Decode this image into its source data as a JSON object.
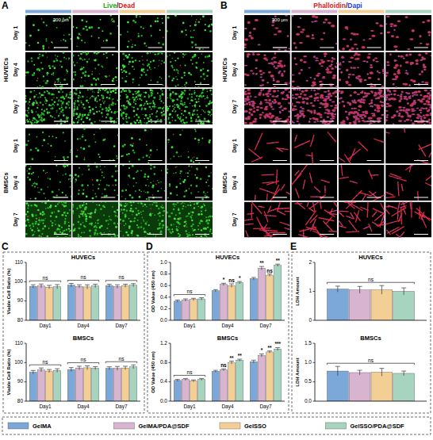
{
  "figure": {
    "panels": [
      {
        "letter": "A",
        "title": [
          "Live",
          "/",
          "Dead"
        ],
        "scale_bar": "300 μm",
        "rows": [
          {
            "group": "HUVECs",
            "days": [
              "Day 1",
              "Day 4",
              "Day 7"
            ]
          },
          {
            "group": "BMSCs",
            "days": [
              "Day 1",
              "Day 4",
              "Day 7"
            ]
          }
        ]
      },
      {
        "letter": "B",
        "title": [
          "Phalloidin",
          "/",
          "Dapi"
        ],
        "scale_bar": "300 μm",
        "rows": [
          {
            "group": "HUVECs",
            "days": [
              "Day 1",
              "Day 4",
              "Day 7"
            ]
          },
          {
            "group": "BMSCs",
            "days": [
              "Day 1",
              "Day 4",
              "Day 7"
            ]
          }
        ]
      },
      {
        "letter": "C"
      },
      {
        "letter": "D"
      },
      {
        "letter": "E"
      }
    ]
  },
  "chart_data": [
    {
      "type": "bar",
      "title": "HUVECs",
      "y_label": "Viable Cell Ratio (%)",
      "categories": [
        "Day1",
        "Day4",
        "Day7"
      ],
      "ylim": [
        80,
        110
      ],
      "yticks": [
        80,
        90,
        100,
        110
      ],
      "legend": "bottom",
      "group_annotations": [
        "ns",
        "ns",
        "ns"
      ],
      "series": [
        {
          "name": "GelMA",
          "color": "#7ba7d9",
          "values": [
            97.6,
            98.2,
            98.0
          ],
          "errors": [
            0.8,
            0.9,
            0.7
          ]
        },
        {
          "name": "GelMA/PDA@SDF",
          "color": "#d8b4d0",
          "values": [
            97.8,
            97.6,
            97.5
          ],
          "errors": [
            1.0,
            0.8,
            0.9
          ]
        },
        {
          "name": "GelSSO",
          "color": "#f3cf96",
          "values": [
            97.2,
            97.3,
            97.9
          ],
          "errors": [
            0.9,
            1.1,
            0.8
          ]
        },
        {
          "name": "GelSSO/PDA@SDF",
          "color": "#a6d4bf",
          "values": [
            97.4,
            97.8,
            98.2
          ],
          "errors": [
            1.1,
            0.9,
            0.8
          ]
        }
      ]
    },
    {
      "type": "bar",
      "title": "BMSCs",
      "y_label": "Viable Cell Ratio (%)",
      "categories": [
        "Day1",
        "Day4",
        "Day7"
      ],
      "ylim": [
        80,
        110
      ],
      "yticks": [
        80,
        90,
        100,
        110
      ],
      "group_annotations": [
        "ns",
        "ns",
        "ns"
      ],
      "series": [
        {
          "color": "#7ba7d9",
          "values": [
            95.0,
            96.4,
            97.0
          ],
          "errors": [
            0.9,
            1.0,
            0.8
          ]
        },
        {
          "color": "#d8b4d0",
          "values": [
            96.2,
            97.2,
            97.0
          ],
          "errors": [
            1.0,
            0.9,
            1.0
          ]
        },
        {
          "color": "#f3cf96",
          "values": [
            95.6,
            97.3,
            97.2
          ],
          "errors": [
            0.8,
            1.0,
            0.9
          ]
        },
        {
          "color": "#a6d4bf",
          "values": [
            95.9,
            97.1,
            97.8
          ],
          "errors": [
            0.9,
            0.8,
            1.0
          ]
        }
      ]
    },
    {
      "type": "bar",
      "title": "HUVECs",
      "y_label": "OD Value (450 nm)",
      "categories": [
        "Day1",
        "Day4",
        "Day7"
      ],
      "ylim": [
        0,
        1
      ],
      "yticks": [
        {
          "value": 0,
          "label": "0.0"
        },
        0.2,
        0.4,
        0.6,
        0.8,
        {
          "value": 1,
          "label": "1.0"
        }
      ],
      "group_annotations": [
        "ns",
        null,
        null
      ],
      "series": [
        {
          "color": "#7ba7d9",
          "values": [
            0.33,
            0.51,
            0.72
          ],
          "errors": [
            0.02,
            0.02,
            0.02
          ]
        },
        {
          "color": "#d8b4d0",
          "values": [
            0.35,
            0.62,
            0.9
          ],
          "errors": [
            0.02,
            0.02,
            0.03
          ],
          "annotations": [
            null,
            "*",
            "**"
          ]
        },
        {
          "color": "#f3cf96",
          "values": [
            0.36,
            0.6,
            0.78
          ],
          "errors": [
            0.02,
            0.03,
            0.02
          ],
          "annotations": [
            null,
            "ns",
            "ns"
          ]
        },
        {
          "color": "#a6d4bf",
          "values": [
            0.37,
            0.65,
            0.95
          ],
          "errors": [
            0.02,
            0.02,
            0.02
          ],
          "annotations": [
            null,
            "*",
            "**"
          ]
        }
      ]
    },
    {
      "type": "bar",
      "title": "BMSCs",
      "y_label": "OD Value (450 nm)",
      "categories": [
        "Day1",
        "Day4",
        "Day7"
      ],
      "ylim": [
        0,
        1.2
      ],
      "yticks": [
        {
          "value": 0,
          "label": "0.0"
        },
        0.4,
        0.8,
        1.2
      ],
      "group_annotations": [
        "ns",
        null,
        null
      ],
      "series": [
        {
          "color": "#7ba7d9",
          "values": [
            0.43,
            0.62,
            0.82
          ],
          "errors": [
            0.02,
            0.02,
            0.03
          ]
        },
        {
          "color": "#d8b4d0",
          "values": [
            0.45,
            0.65,
            0.95
          ],
          "errors": [
            0.02,
            0.02,
            0.03
          ],
          "annotations": [
            null,
            "ns",
            "*"
          ]
        },
        {
          "color": "#f3cf96",
          "values": [
            0.42,
            0.8,
            1.02
          ],
          "errors": [
            0.02,
            0.03,
            0.02
          ],
          "annotations": [
            null,
            "**",
            "**"
          ]
        },
        {
          "color": "#a6d4bf",
          "values": [
            0.45,
            0.85,
            1.08
          ],
          "errors": [
            0.02,
            0.02,
            0.03
          ],
          "annotations": [
            null,
            "**",
            "***"
          ]
        }
      ]
    },
    {
      "type": "bar",
      "title": "HUVECs",
      "y_label": "LDH Amount",
      "categories": [
        null
      ],
      "ylim": [
        0,
        2
      ],
      "yticks": [
        0,
        1,
        2
      ],
      "tick_labels": "y",
      "group_annotations": [
        "ns"
      ],
      "series": [
        {
          "color": "#7ba7d9",
          "values": [
            1.08
          ],
          "errors": [
            0.1
          ]
        },
        {
          "color": "#d8b4d0",
          "values": [
            1.05
          ],
          "errors": [
            0.12
          ]
        },
        {
          "color": "#f3cf96",
          "values": [
            1.05
          ],
          "errors": [
            0.15
          ]
        },
        {
          "color": "#a6d4bf",
          "values": [
            1.0
          ],
          "errors": [
            0.12
          ]
        }
      ]
    },
    {
      "type": "bar",
      "title": "BMSCs",
      "y_label": "LDH Amount",
      "categories": [
        null
      ],
      "ylim": [
        0,
        1.5
      ],
      "yticks": [
        {
          "value": 0,
          "label": "0.0"
        },
        0.5,
        {
          "value": 1,
          "label": "1.0"
        },
        1.5
      ],
      "tick_labels": "y",
      "group_annotations": [
        "ns"
      ],
      "series": [
        {
          "color": "#7ba7d9",
          "values": [
            0.78
          ],
          "errors": [
            0.12
          ]
        },
        {
          "color": "#d8b4d0",
          "values": [
            0.74
          ],
          "errors": [
            0.06
          ]
        },
        {
          "color": "#f3cf96",
          "values": [
            0.75
          ],
          "errors": [
            0.1
          ]
        },
        {
          "color": "#a6d4bf",
          "values": [
            0.72
          ],
          "errors": [
            0.06
          ]
        }
      ]
    }
  ]
}
